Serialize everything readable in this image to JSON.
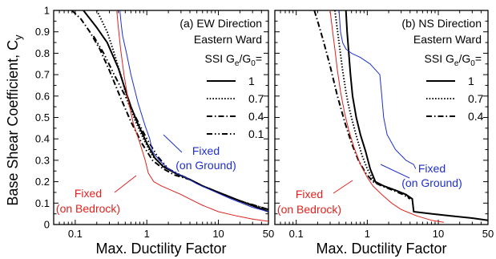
{
  "ylabel_main": "Base Shear Coefficient, C",
  "ylabel_sub": "y",
  "colors": {
    "fixed_ground": "#1f2fd0",
    "fixed_bedrock": "#e0231e",
    "ssi": "#000000"
  },
  "chart_data": [
    {
      "type": "line",
      "panel_label": "(a) EW Direction",
      "location_label": "Eastern Ward",
      "legend_title": {
        "pre": "SSI G",
        "sub1": "e",
        "mid": "/G",
        "sub2": "0",
        "post": "="
      },
      "xlabel": "Max. Ductility Factor",
      "xscale": "log",
      "xlim": [
        0.05,
        50
      ],
      "ylim": [
        0,
        1
      ],
      "xticks": [
        "0.1",
        "1",
        "10",
        "50"
      ],
      "yticks": [
        "0",
        "0.1",
        "0.2",
        "0.3",
        "0.4",
        "0.5",
        "0.6",
        "0.7",
        "0.8",
        "0.9",
        "1"
      ],
      "legend_entries": [
        "1",
        "0.7",
        "0.4",
        "0.1"
      ],
      "annotations": [
        {
          "lines": [
            "Fixed",
            "(on Ground)"
          ],
          "color": "fixed_ground"
        },
        {
          "lines": [
            "Fixed",
            "(on Bedrock)"
          ],
          "color": "fixed_bedrock"
        }
      ],
      "series": [
        {
          "name": "1",
          "style": "solid",
          "color": "ssi",
          "x": [
            0.13,
            0.2,
            0.28,
            0.4,
            0.5,
            0.6,
            0.75,
            1,
            1.3,
            1.7,
            2.5,
            4,
            6,
            10,
            20,
            50
          ],
          "y": [
            1,
            0.92,
            0.85,
            0.73,
            0.63,
            0.55,
            0.47,
            0.38,
            0.31,
            0.27,
            0.24,
            0.21,
            0.18,
            0.15,
            0.11,
            0.06
          ]
        },
        {
          "name": "0.7",
          "style": "dotted",
          "color": "ssi",
          "x": [
            0.2,
            0.28,
            0.35,
            0.45,
            0.55,
            0.7,
            0.9,
            1.2,
            1.6,
            2.5,
            4,
            6,
            10,
            20,
            50
          ],
          "y": [
            1,
            0.9,
            0.8,
            0.68,
            0.57,
            0.48,
            0.4,
            0.32,
            0.28,
            0.24,
            0.21,
            0.18,
            0.15,
            0.11,
            0.06
          ]
        },
        {
          "name": "0.4",
          "style": "dashdot",
          "color": "ssi",
          "x": [
            0.09,
            0.12,
            0.16,
            0.22,
            0.3,
            0.42,
            0.6,
            0.85,
            1.2,
            1.7,
            2.5,
            4,
            6,
            10,
            20,
            50
          ],
          "y": [
            1,
            0.96,
            0.9,
            0.82,
            0.72,
            0.6,
            0.48,
            0.38,
            0.3,
            0.26,
            0.23,
            0.21,
            0.18,
            0.15,
            0.11,
            0.07
          ]
        },
        {
          "name": "0.1",
          "style": "dashdotdot",
          "color": "ssi",
          "x": [
            0.18,
            0.25,
            0.35,
            0.5,
            0.7,
            1,
            1.4,
            2,
            3,
            4,
            6,
            10,
            20,
            50
          ],
          "y": [
            0.88,
            0.8,
            0.7,
            0.6,
            0.5,
            0.4,
            0.32,
            0.26,
            0.23,
            0.21,
            0.18,
            0.15,
            0.11,
            0.07
          ]
        },
        {
          "name": "Fixed (on Ground)",
          "style": "solid",
          "color": "fixed_ground",
          "x": [
            0.42,
            0.44,
            0.46,
            0.52,
            0.6,
            0.75,
            0.95,
            1.1,
            1.2,
            1.5,
            2,
            2.6,
            3.5,
            5,
            8,
            15,
            30,
            50
          ],
          "y": [
            1,
            0.93,
            0.88,
            0.8,
            0.7,
            0.57,
            0.46,
            0.4,
            0.34,
            0.3,
            0.26,
            0.24,
            0.22,
            0.19,
            0.16,
            0.12,
            0.08,
            0.06
          ]
        },
        {
          "name": "Fixed (on Bedrock)",
          "style": "solid",
          "color": "fixed_bedrock",
          "x": [
            0.38,
            0.4,
            0.43,
            0.48,
            0.55,
            0.65,
            0.8,
            0.95,
            1.05,
            1.25,
            1.6,
            2.2,
            3,
            4.5,
            6,
            10,
            18,
            30,
            50
          ],
          "y": [
            1,
            0.92,
            0.82,
            0.7,
            0.58,
            0.47,
            0.38,
            0.3,
            0.24,
            0.2,
            0.18,
            0.16,
            0.14,
            0.11,
            0.09,
            0.06,
            0.04,
            0.025,
            0.015
          ]
        }
      ]
    },
    {
      "type": "line",
      "panel_label": "(b) NS Direction",
      "location_label": "Eastern Ward",
      "legend_title": {
        "pre": "SSI G",
        "sub1": "e",
        "mid": "/G",
        "sub2": "0",
        "post": "="
      },
      "xlabel": "Max. Ductility Factor",
      "xscale": "log",
      "xlim": [
        0.05,
        50
      ],
      "ylim": [
        0,
        1
      ],
      "xticks": [
        "0.1",
        "1",
        "10",
        "50"
      ],
      "yticks": [],
      "legend_entries": [
        "1",
        "0.7",
        "0.4"
      ],
      "annotations": [
        {
          "lines": [
            "Fixed",
            "(on Ground)"
          ],
          "color": "fixed_ground"
        },
        {
          "lines": [
            "Fixed",
            "(on Bedrock)"
          ],
          "color": "fixed_bedrock"
        }
      ],
      "series": [
        {
          "name": "1",
          "style": "solid",
          "color": "ssi",
          "x": [
            0.5,
            0.52,
            0.55,
            0.58,
            0.62,
            0.7,
            0.8,
            0.95,
            1.1,
            1.3,
            1.7,
            2.5,
            3.5,
            4.3,
            4.5,
            8,
            15,
            30,
            50
          ],
          "y": [
            1,
            0.9,
            0.8,
            0.7,
            0.6,
            0.5,
            0.42,
            0.34,
            0.26,
            0.2,
            0.18,
            0.16,
            0.14,
            0.12,
            0.06,
            0.05,
            0.04,
            0.03,
            0.02
          ]
        },
        {
          "name": "0.7",
          "style": "dotted",
          "color": "ssi",
          "x": [
            0.35,
            0.4,
            0.45,
            0.5,
            0.55,
            0.62,
            0.72,
            0.85,
            1,
            1.25,
            1.7,
            2.5,
            3.5,
            4
          ],
          "y": [
            1,
            0.85,
            0.72,
            0.62,
            0.55,
            0.48,
            0.4,
            0.32,
            0.26,
            0.2,
            0.18,
            0.16,
            0.14,
            0.12
          ]
        },
        {
          "name": "0.4",
          "style": "dashdot",
          "color": "ssi",
          "x": [
            0.18,
            0.2,
            0.24,
            0.3,
            0.38,
            0.48,
            0.6,
            0.75,
            0.95,
            1.2,
            1.6,
            2.3,
            3.2,
            4
          ],
          "y": [
            1,
            0.95,
            0.86,
            0.74,
            0.6,
            0.48,
            0.38,
            0.3,
            0.24,
            0.2,
            0.18,
            0.16,
            0.14,
            0.12
          ]
        },
        {
          "name": "Fixed (on Ground)",
          "style": "solid",
          "color": "fixed_ground",
          "x": [
            0.4,
            0.41,
            0.42,
            0.45,
            0.5,
            0.6,
            0.8,
            1.1,
            1.5,
            1.6,
            1.7,
            1.9,
            2.5,
            3.5,
            4.5,
            4.8
          ],
          "y": [
            1,
            0.95,
            0.9,
            0.85,
            0.82,
            0.8,
            0.78,
            0.75,
            0.7,
            0.6,
            0.5,
            0.42,
            0.35,
            0.3,
            0.28,
            0.26
          ]
        },
        {
          "name": "Fixed (on Bedrock)",
          "style": "solid",
          "color": "fixed_bedrock",
          "x": [
            0.3,
            0.32,
            0.35,
            0.38,
            0.42,
            0.48,
            0.55,
            0.65,
            0.8,
            1,
            1.2,
            1.6,
            2.2,
            3,
            5,
            8,
            12
          ],
          "y": [
            1,
            0.92,
            0.82,
            0.72,
            0.62,
            0.52,
            0.44,
            0.36,
            0.28,
            0.22,
            0.18,
            0.14,
            0.1,
            0.07,
            0.04,
            0.02,
            0.01
          ]
        }
      ]
    }
  ]
}
